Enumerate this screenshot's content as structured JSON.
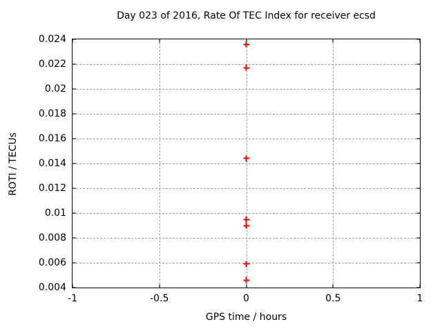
{
  "chart_data": {
    "type": "scatter",
    "title": "Day 023 of 2016, Rate Of TEC Index for receiver ecsd",
    "xlabel": "GPS time / hours",
    "ylabel": "ROTI / TECUs",
    "xlim": [
      -1,
      1
    ],
    "ylim": [
      0.004,
      0.024
    ],
    "xticks": [
      -1,
      -0.5,
      0,
      0.5,
      1
    ],
    "xtick_labels": [
      "-1",
      "-0.5",
      "0",
      "0.5",
      "1"
    ],
    "yticks": [
      0.004,
      0.006,
      0.008,
      0.01,
      0.012,
      0.014,
      0.016,
      0.018,
      0.02,
      0.022,
      0.024
    ],
    "ytick_labels": [
      "0.004",
      "0.006",
      "0.008",
      "0.01",
      "0.012",
      "0.014",
      "0.016",
      "0.018",
      "0.02",
      "0.022",
      "0.024"
    ],
    "grid": true,
    "legend": "none",
    "marker": "plus",
    "marker_color": "#ff0000",
    "grid_color": "#a0a0a0",
    "axis_color": "#000000",
    "text_color": "#000000",
    "background": "#ffffff",
    "series": [
      {
        "name": "ROTI",
        "points": [
          {
            "x": 0,
            "y": 0.0236
          },
          {
            "x": 0,
            "y": 0.0217
          },
          {
            "x": 0,
            "y": 0.0144
          },
          {
            "x": 0,
            "y": 0.0095
          },
          {
            "x": 0,
            "y": 0.009
          },
          {
            "x": 0,
            "y": 0.0059
          },
          {
            "x": 0,
            "y": 0.0046
          }
        ]
      }
    ]
  }
}
